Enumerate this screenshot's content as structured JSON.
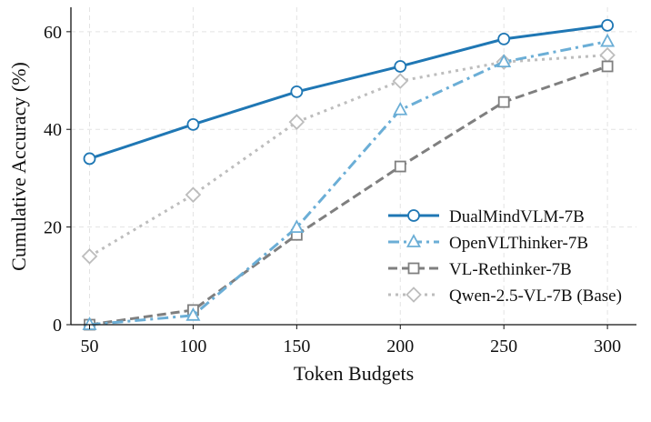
{
  "chart_data": {
    "type": "line",
    "title": "",
    "xlabel": "Token Budgets",
    "ylabel": "Cumulative Accuracy (%)",
    "x": [
      50,
      100,
      150,
      200,
      250,
      300
    ],
    "xticks": [
      50,
      100,
      150,
      200,
      250,
      300
    ],
    "yticks": [
      0,
      20,
      40,
      60
    ],
    "xlim": [
      41,
      314
    ],
    "ylim": [
      0,
      65
    ],
    "grid": true,
    "legend_placement": "lower-right",
    "series": [
      {
        "name": "DualMindVLM-7B",
        "values": [
          34.0,
          41.0,
          47.7,
          52.9,
          58.5,
          61.3
        ],
        "color": "#1f77b4",
        "marker": "circle",
        "dash": "solid"
      },
      {
        "name": "OpenVLThinker-7B",
        "values": [
          0.0,
          1.9,
          19.9,
          44.0,
          53.8,
          58.0
        ],
        "color": "#6baed6",
        "marker": "triangle",
        "dash": "dashdot"
      },
      {
        "name": "VL-Rethinker-7B",
        "values": [
          0.0,
          3.0,
          18.4,
          32.4,
          45.6,
          52.9
        ],
        "color": "#7f7f7f",
        "marker": "square",
        "dash": "dashed"
      },
      {
        "name": "Qwen-2.5-VL-7B (Base)",
        "values": [
          14.0,
          26.6,
          41.5,
          49.9,
          53.8,
          55.2
        ],
        "color": "#bdbdbd",
        "marker": "diamond",
        "dash": "dotted"
      }
    ]
  }
}
